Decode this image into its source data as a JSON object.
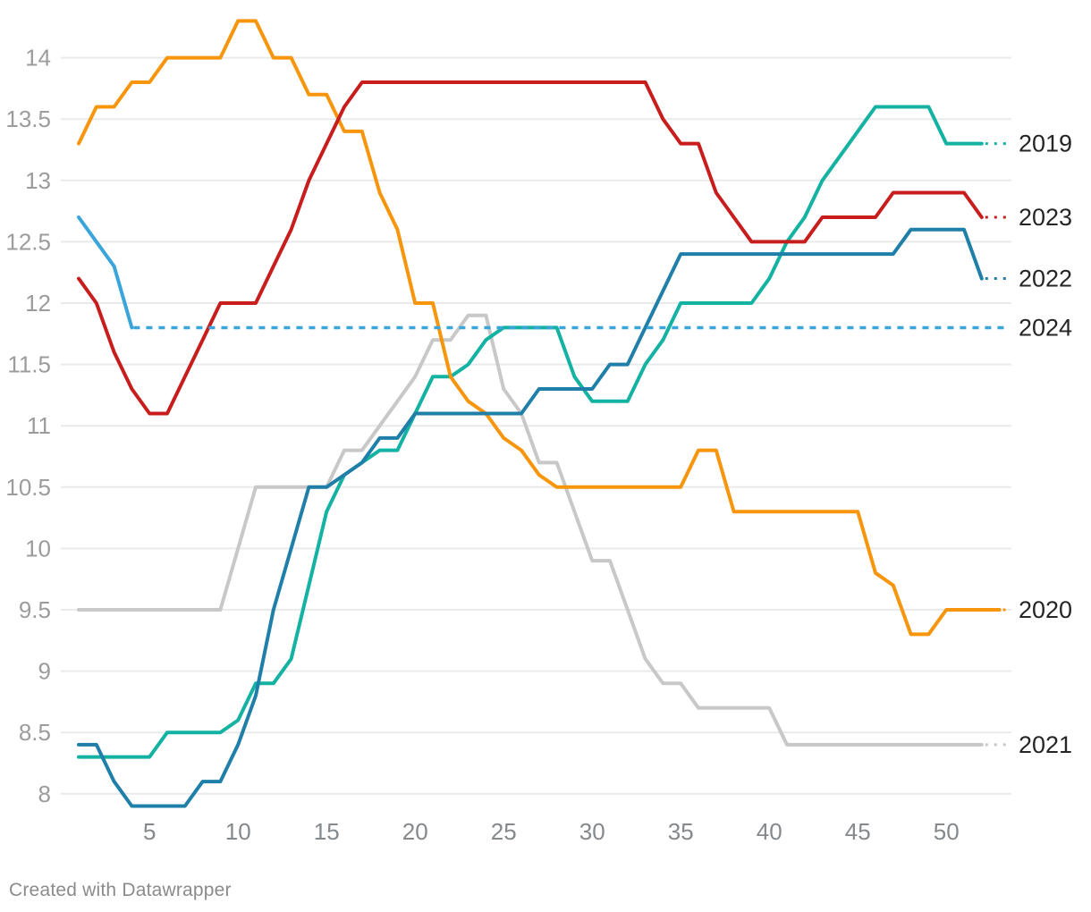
{
  "footer": {
    "credit": "Created with Datawrapper"
  },
  "chart_data": {
    "type": "line",
    "title": "",
    "xlabel": "",
    "ylabel": "",
    "x_axis": {
      "ticks": [
        5,
        10,
        15,
        20,
        25,
        30,
        35,
        40,
        45,
        50
      ],
      "range": [
        1,
        53
      ],
      "unit": "week-of-year"
    },
    "y_axis": {
      "ticks": [
        8,
        8.5,
        9,
        9.5,
        10,
        10.5,
        11,
        11.5,
        12,
        12.5,
        13,
        13.5,
        14
      ],
      "range": [
        7.9,
        14.3
      ],
      "grid": true
    },
    "legend_position": "right-edge-labels",
    "grid_color": "#e9eaeb",
    "series": [
      {
        "name": "2021",
        "color": "#c8c8c8",
        "connector": true,
        "values": [
          9.5,
          9.5,
          9.5,
          9.5,
          9.5,
          9.5,
          9.5,
          9.5,
          9.5,
          10.0,
          10.5,
          10.5,
          10.5,
          10.5,
          10.5,
          10.8,
          10.8,
          11.0,
          11.2,
          11.4,
          11.7,
          11.7,
          11.9,
          11.9,
          11.3,
          11.1,
          10.7,
          10.7,
          10.3,
          9.9,
          9.9,
          9.5,
          9.1,
          8.9,
          8.9,
          8.7,
          8.7,
          8.7,
          8.7,
          8.7,
          8.4,
          8.4,
          8.4,
          8.4,
          8.4,
          8.4,
          8.4,
          8.4,
          8.4,
          8.4,
          8.4,
          8.4
        ]
      },
      {
        "name": "2019",
        "color": "#13b2a2",
        "connector": true,
        "values": [
          8.3,
          8.3,
          8.3,
          8.3,
          8.3,
          8.5,
          8.5,
          8.5,
          8.5,
          8.6,
          8.9,
          8.9,
          9.1,
          9.7,
          10.3,
          10.6,
          10.7,
          10.8,
          10.8,
          11.1,
          11.4,
          11.4,
          11.5,
          11.7,
          11.8,
          11.8,
          11.8,
          11.8,
          11.4,
          11.2,
          11.2,
          11.2,
          11.5,
          11.7,
          12.0,
          12.0,
          12.0,
          12.0,
          12.0,
          12.2,
          12.5,
          12.7,
          13.0,
          13.2,
          13.4,
          13.6,
          13.6,
          13.6,
          13.6,
          13.3,
          13.3,
          13.3
        ]
      },
      {
        "name": "2020",
        "color": "#f7950c",
        "connector": true,
        "values": [
          13.3,
          13.6,
          13.6,
          13.8,
          13.8,
          14.0,
          14.0,
          14.0,
          14.0,
          14.3,
          14.3,
          14.0,
          14.0,
          13.7,
          13.7,
          13.4,
          13.4,
          12.9,
          12.6,
          12.0,
          12.0,
          11.4,
          11.2,
          11.1,
          10.9,
          10.8,
          10.6,
          10.5,
          10.5,
          10.5,
          10.5,
          10.5,
          10.5,
          10.5,
          10.5,
          10.8,
          10.8,
          10.3,
          10.3,
          10.3,
          10.3,
          10.3,
          10.3,
          10.3,
          10.3,
          9.8,
          9.7,
          9.3,
          9.3,
          9.5,
          9.5,
          9.5,
          9.5
        ]
      },
      {
        "name": "2022",
        "color": "#1f7fa8",
        "connector": true,
        "values": [
          8.4,
          8.4,
          8.1,
          7.9,
          7.9,
          7.9,
          7.9,
          8.1,
          8.1,
          8.4,
          8.8,
          9.5,
          10.0,
          10.5,
          10.5,
          10.6,
          10.7,
          10.9,
          10.9,
          11.1,
          11.1,
          11.1,
          11.1,
          11.1,
          11.1,
          11.1,
          11.3,
          11.3,
          11.3,
          11.3,
          11.5,
          11.5,
          11.8,
          12.1,
          12.4,
          12.4,
          12.4,
          12.4,
          12.4,
          12.4,
          12.4,
          12.4,
          12.4,
          12.4,
          12.4,
          12.4,
          12.4,
          12.6,
          12.6,
          12.6,
          12.6,
          12.2
        ]
      },
      {
        "name": "2023",
        "color": "#c71e1d",
        "connector": true,
        "values": [
          12.2,
          12.0,
          11.6,
          11.3,
          11.1,
          11.1,
          11.4,
          11.7,
          12.0,
          12.0,
          12.0,
          12.3,
          12.6,
          13.0,
          13.3,
          13.6,
          13.8,
          13.8,
          13.8,
          13.8,
          13.8,
          13.8,
          13.8,
          13.8,
          13.8,
          13.8,
          13.8,
          13.8,
          13.8,
          13.8,
          13.8,
          13.8,
          13.8,
          13.5,
          13.3,
          13.3,
          12.9,
          12.7,
          12.5,
          12.5,
          12.5,
          12.5,
          12.7,
          12.7,
          12.7,
          12.7,
          12.9,
          12.9,
          12.9,
          12.9,
          12.9,
          12.7
        ]
      },
      {
        "name": "2024",
        "color": "#3aa5db",
        "connector": false,
        "projection_value": 11.8,
        "values": [
          12.7,
          12.5,
          12.3,
          11.8
        ]
      }
    ],
    "label_order_top_to_bottom": [
      "2019",
      "2023",
      "2022",
      "2024",
      "2020",
      "2021"
    ]
  }
}
